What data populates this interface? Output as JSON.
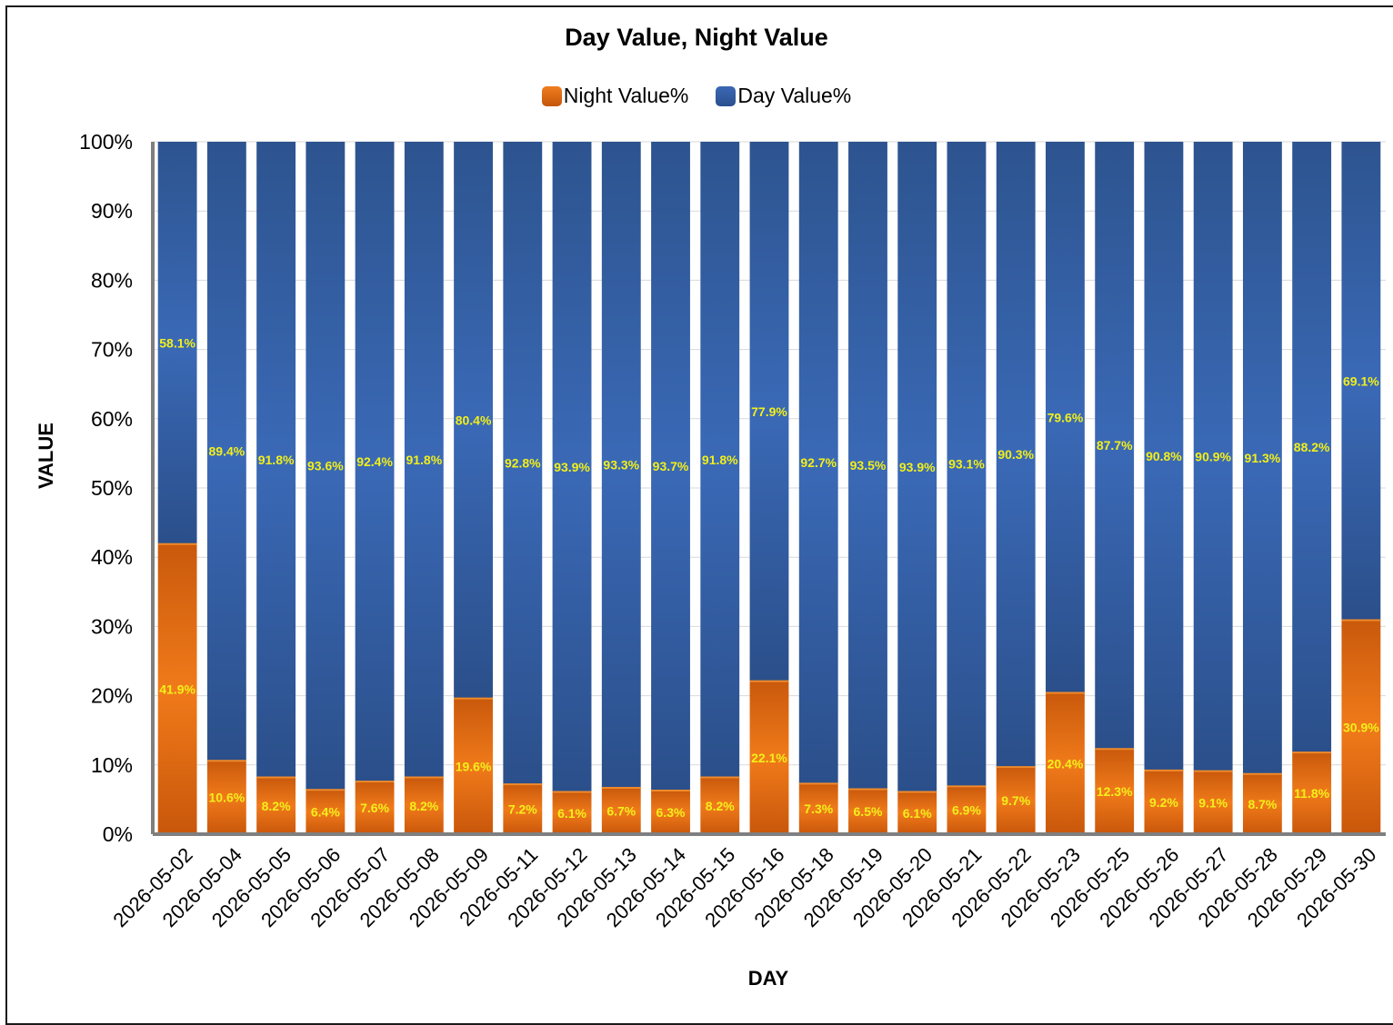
{
  "colors": {
    "night": "#e06a12",
    "day": "#3460ad",
    "label": "#f2ef1a",
    "grid": "#d9d9d9",
    "axis": "#7f7f7f"
  },
  "chart_data": {
    "type": "bar",
    "stacked": true,
    "title": "Day Value, Night Value",
    "xlabel": "DAY",
    "ylabel": "VALUE",
    "ylim": [
      0,
      100
    ],
    "yticks": [
      "0%",
      "10%",
      "20%",
      "30%",
      "40%",
      "50%",
      "60%",
      "70%",
      "80%",
      "90%",
      "100%"
    ],
    "grid": true,
    "legend": "top-center",
    "categories": [
      "2026-05-02",
      "2026-05-04",
      "2026-05-05",
      "2026-05-06",
      "2026-05-07",
      "2026-05-08",
      "2026-05-09",
      "2026-05-11",
      "2026-05-12",
      "2026-05-13",
      "2026-05-14",
      "2026-05-15",
      "2026-05-16",
      "2026-05-18",
      "2026-05-19",
      "2026-05-20",
      "2026-05-21",
      "2026-05-22",
      "2026-05-23",
      "2026-05-25",
      "2026-05-26",
      "2026-05-27",
      "2026-05-28",
      "2026-05-29",
      "2026-05-30"
    ],
    "series": [
      {
        "name": "Night Value%",
        "values": [
          41.9,
          10.6,
          8.2,
          6.4,
          7.6,
          8.2,
          19.6,
          7.2,
          6.1,
          6.7,
          6.3,
          8.2,
          22.1,
          7.3,
          6.5,
          6.1,
          6.9,
          9.7,
          20.4,
          12.3,
          9.2,
          9.1,
          8.7,
          11.8,
          30.9
        ],
        "labels": [
          "41.9%",
          "10.6%",
          "8.2%",
          "6.4%",
          "7.6%",
          "8.2%",
          "19.6%",
          "7.2%",
          "6.1%",
          "6.7%",
          "6.3%",
          "8.2%",
          "22.1%",
          "7.3%",
          "6.5%",
          "6.1%",
          "6.9%",
          "9.7%",
          "20.4%",
          "12.3%",
          "9.2%",
          "9.1%",
          "8.7%",
          "11.8%",
          "30.9%"
        ]
      },
      {
        "name": "Day Value%",
        "values": [
          58.1,
          89.4,
          91.8,
          93.6,
          92.4,
          91.8,
          80.4,
          92.8,
          93.9,
          93.3,
          93.7,
          91.8,
          77.9,
          92.7,
          93.5,
          93.9,
          93.1,
          90.3,
          79.6,
          87.7,
          90.8,
          90.9,
          91.3,
          88.2,
          69.1
        ],
        "labels": [
          "58.1%",
          "89.4%",
          "91.8%",
          "93.6%",
          "92.4%",
          "91.8%",
          "80.4%",
          "92.8%",
          "93.9%",
          "93.3%",
          "93.7%",
          "91.8%",
          "77.9%",
          "92.7%",
          "93.5%",
          "93.9%",
          "93.1%",
          "90.3%",
          "79.6%",
          "87.7%",
          "90.8%",
          "90.9%",
          "91.3%",
          "88.2%",
          "69.1%"
        ]
      }
    ]
  }
}
